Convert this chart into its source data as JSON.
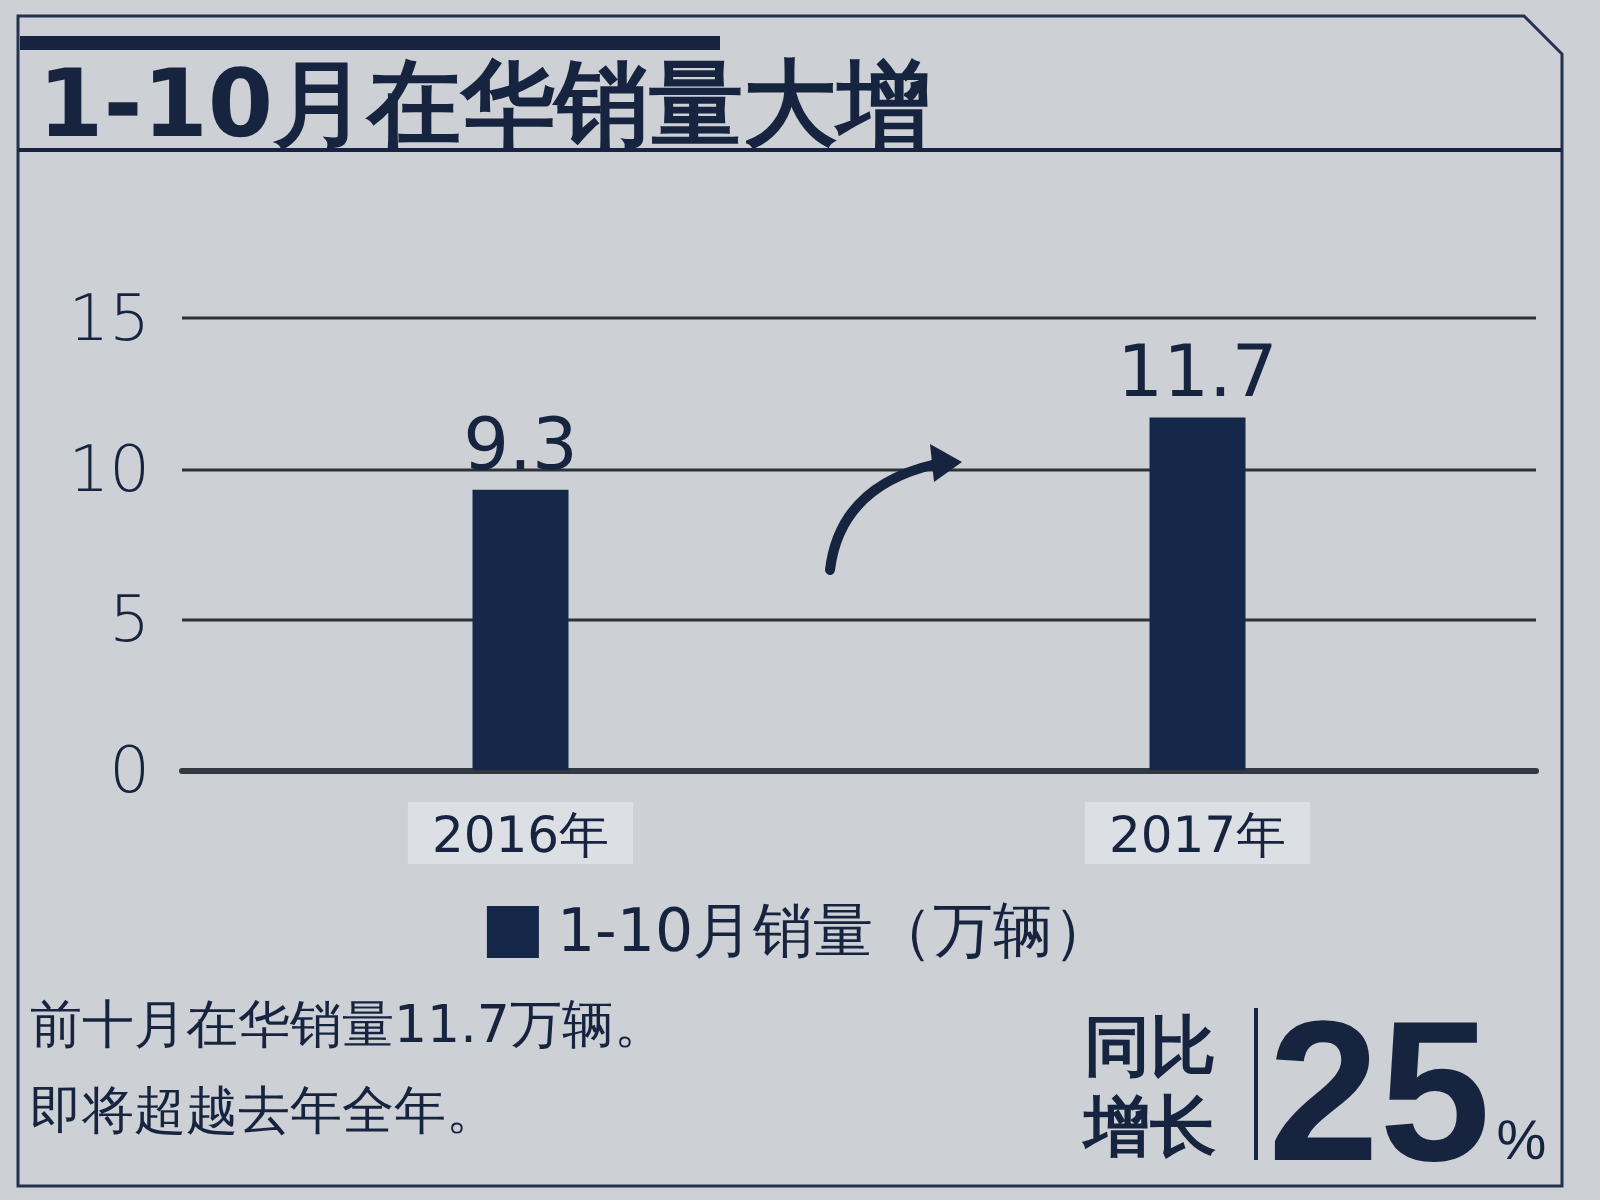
{
  "chart_data": {
    "type": "bar",
    "title": "1-10月在华销量大增",
    "categories": [
      "2016年",
      "2017年"
    ],
    "series": [
      {
        "name": "1-10月销量（万辆）",
        "color": "#15284a",
        "values": [
          9.3,
          11.7
        ]
      }
    ],
    "ylim": [
      0,
      15
    ],
    "yticks": [
      0,
      5,
      10,
      15
    ],
    "grid": "y",
    "legend": "bottom",
    "data_labels": true,
    "annotations": [
      "前十月在华销量11.7万辆。",
      "即将超越去年全年。",
      "同比增长",
      "25%"
    ]
  }
}
